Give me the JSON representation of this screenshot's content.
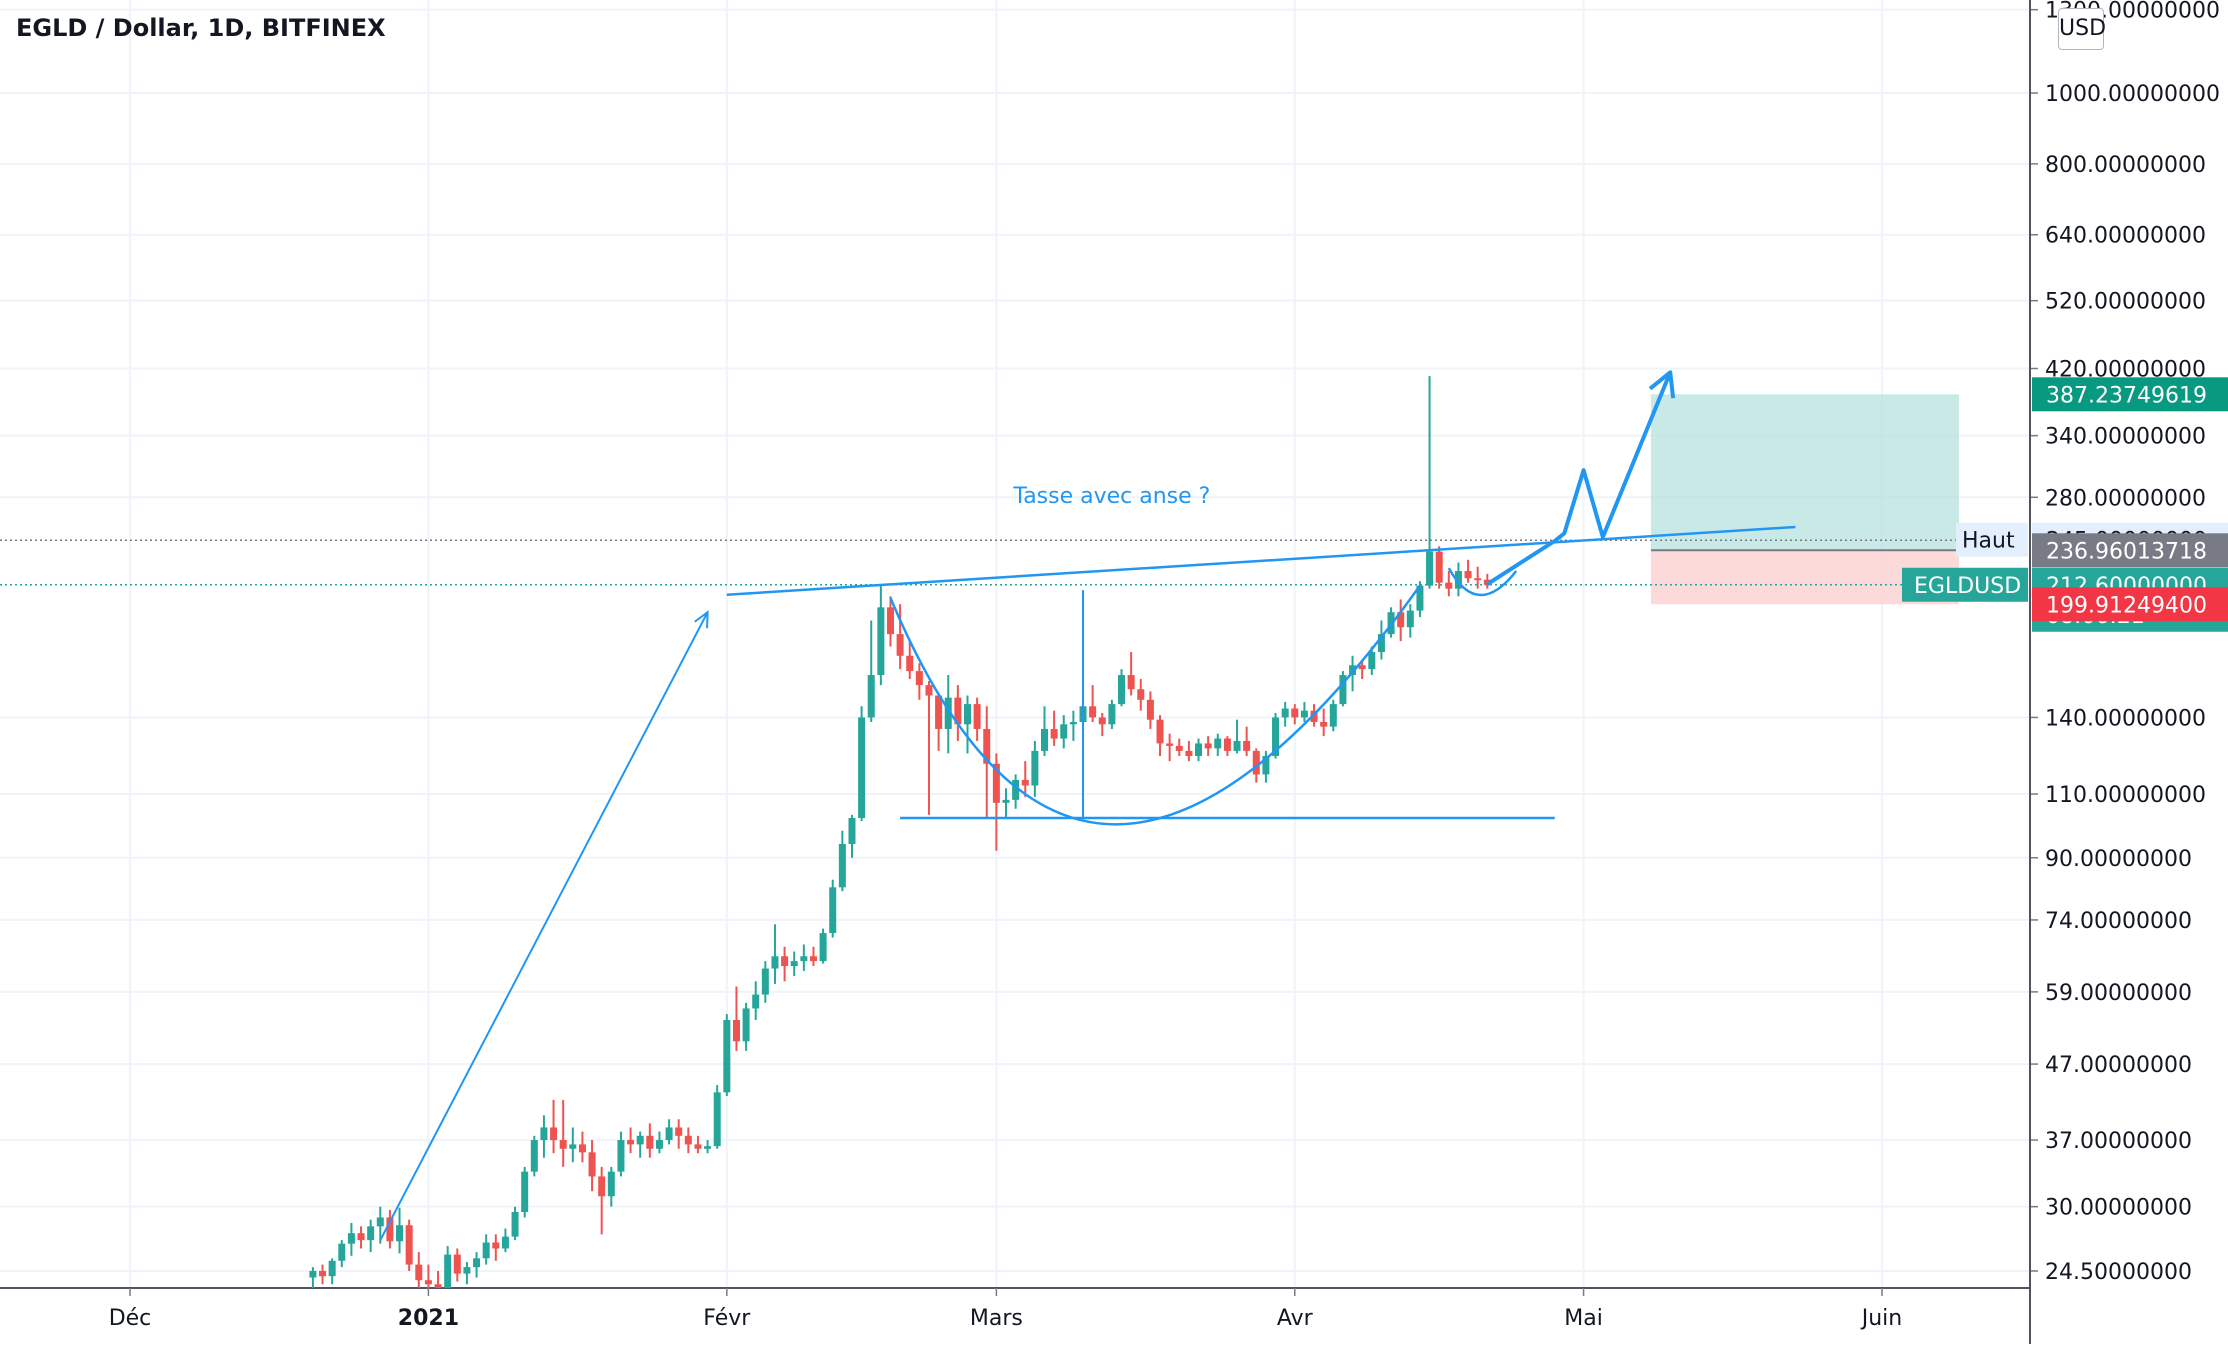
{
  "header": {
    "title": "EGLD / Dollar, 1D, BITFINEX",
    "currency": "USD"
  },
  "colors": {
    "up": "#26a69a",
    "down": "#ef5350",
    "drawing": "#2196f3",
    "target_zone": "#b2dfdb",
    "stop_zone": "#fdd4d4"
  },
  "chart_data": {
    "type": "candlestick",
    "symbol": "EGLDUSD",
    "timeframe": "1D",
    "x_axis": {
      "labels": [
        "Déc",
        "2021",
        "Févr",
        "Mars",
        "Avr",
        "Mai",
        "Juin"
      ],
      "range": [
        "2020-11-15",
        "2021-06-15"
      ]
    },
    "y_axis": {
      "scale": "log",
      "range": [
        22,
        1300
      ],
      "tick_labels": [
        "1300.00000000",
        "1000.00000000",
        "800.00000000",
        "640.00000000",
        "520.00000000",
        "420.00000000",
        "340.00000000",
        "280.00000000",
        "140.00000000",
        "110.00000000",
        "90.00000000",
        "74.00000000",
        "59.00000000",
        "47.00000000",
        "37.00000000",
        "30.00000000",
        "24.50000000"
      ]
    },
    "price_labels": {
      "target": "387.23749619",
      "alert_label": "Haut",
      "alert": "245.00000000",
      "entry": "236.96013718",
      "last_symbol": "EGLDUSD",
      "last": "212.60000000",
      "countdown": "08:06:21",
      "stop": "199.91249400"
    },
    "annotations": {
      "pattern_label": "Tasse avec anse ?"
    },
    "series": [
      {
        "candles": [
          [
            "2020-12-20",
            24.0,
            24.8,
            23.2,
            24.5
          ],
          [
            "2020-12-21",
            24.5,
            25.0,
            23.5,
            24.1
          ],
          [
            "2020-12-22",
            24.1,
            25.5,
            23.5,
            25.3
          ],
          [
            "2020-12-23",
            25.3,
            27.0,
            24.8,
            26.7
          ],
          [
            "2020-12-24",
            26.7,
            28.5,
            25.7,
            27.6
          ],
          [
            "2020-12-25",
            27.6,
            28.2,
            26.3,
            27.0
          ],
          [
            "2020-12-26",
            27.0,
            28.8,
            26.0,
            28.2
          ],
          [
            "2020-12-27",
            28.2,
            30.0,
            26.7,
            29.0
          ],
          [
            "2020-12-28",
            29.0,
            29.7,
            26.3,
            26.9
          ],
          [
            "2020-12-29",
            26.9,
            29.9,
            25.9,
            28.3
          ],
          [
            "2020-12-30",
            28.3,
            28.8,
            24.5,
            25.0
          ],
          [
            "2020-12-31",
            25.0,
            26.0,
            23.0,
            23.8
          ],
          [
            "2021-01-01",
            23.8,
            25.0,
            22.8,
            23.5
          ],
          [
            "2021-01-02",
            23.5,
            24.5,
            22.5,
            23.2
          ],
          [
            "2021-01-03",
            23.2,
            26.5,
            23.0,
            25.8
          ],
          [
            "2021-01-04",
            25.8,
            26.3,
            23.7,
            24.3
          ],
          [
            "2021-01-05",
            24.3,
            25.2,
            23.5,
            24.8
          ],
          [
            "2021-01-06",
            24.8,
            26.0,
            24.0,
            25.5
          ],
          [
            "2021-01-07",
            25.5,
            27.5,
            25.0,
            26.8
          ],
          [
            "2021-01-08",
            26.8,
            27.5,
            25.3,
            26.3
          ],
          [
            "2021-01-09",
            26.3,
            28.0,
            26.0,
            27.3
          ],
          [
            "2021-01-10",
            27.3,
            30.0,
            27.0,
            29.5
          ],
          [
            "2021-01-11",
            29.5,
            34.0,
            29.0,
            33.5
          ],
          [
            "2021-01-12",
            33.5,
            37.5,
            33.0,
            37.0
          ],
          [
            "2021-01-13",
            37.0,
            40.0,
            35.0,
            38.5
          ],
          [
            "2021-01-14",
            38.5,
            42.0,
            35.5,
            37.0
          ],
          [
            "2021-01-15",
            37.0,
            42.0,
            34.0,
            36.0
          ],
          [
            "2021-01-16",
            36.0,
            38.5,
            34.5,
            36.5
          ],
          [
            "2021-01-17",
            36.5,
            38.0,
            34.5,
            35.6
          ],
          [
            "2021-01-18",
            35.6,
            37.0,
            31.5,
            33.0
          ],
          [
            "2021-01-19",
            33.0,
            34.0,
            27.5,
            31.0
          ],
          [
            "2021-01-20",
            31.0,
            34.0,
            30.0,
            33.5
          ],
          [
            "2021-01-21",
            33.5,
            38.0,
            33.0,
            37.0
          ],
          [
            "2021-01-22",
            37.0,
            38.5,
            35.5,
            36.5
          ],
          [
            "2021-01-23",
            36.5,
            38.0,
            35.0,
            37.5
          ],
          [
            "2021-01-24",
            37.5,
            39.0,
            35.0,
            36.0
          ],
          [
            "2021-01-25",
            36.0,
            38.0,
            35.5,
            37.0
          ],
          [
            "2021-01-26",
            37.0,
            39.5,
            36.5,
            38.5
          ],
          [
            "2021-01-27",
            38.5,
            39.5,
            36.0,
            37.5
          ],
          [
            "2021-01-28",
            37.5,
            38.5,
            35.5,
            36.5
          ],
          [
            "2021-01-29",
            36.5,
            37.5,
            35.5,
            36.0
          ],
          [
            "2021-01-30",
            36.0,
            37.0,
            35.5,
            36.3
          ],
          [
            "2021-01-31",
            36.3,
            44.0,
            36.0,
            43.0
          ],
          [
            "2021-02-01",
            43.0,
            55.0,
            42.5,
            54.0
          ],
          [
            "2021-02-02",
            54.0,
            60.0,
            49.0,
            50.5
          ],
          [
            "2021-02-03",
            50.5,
            57.0,
            49.0,
            56.0
          ],
          [
            "2021-02-04",
            56.0,
            61.0,
            54.0,
            58.5
          ],
          [
            "2021-02-05",
            58.5,
            65.0,
            57.0,
            63.5
          ],
          [
            "2021-02-06",
            63.5,
            73.0,
            60.5,
            66.0
          ],
          [
            "2021-02-07",
            66.0,
            68.0,
            61.0,
            64.0
          ],
          [
            "2021-02-08",
            64.0,
            67.0,
            62.0,
            65.0
          ],
          [
            "2021-02-09",
            65.0,
            68.5,
            63.0,
            66.0
          ],
          [
            "2021-02-10",
            66.0,
            68.0,
            64.0,
            65.0
          ],
          [
            "2021-02-11",
            65.0,
            72.0,
            64.5,
            71.0
          ],
          [
            "2021-02-12",
            71.0,
            84.0,
            70.0,
            82.0
          ],
          [
            "2021-02-13",
            82.0,
            98.0,
            81.0,
            94.0
          ],
          [
            "2021-02-14",
            94.0,
            103.0,
            90.0,
            102.0
          ],
          [
            "2021-02-15",
            102.0,
            145.0,
            101.0,
            140.0
          ],
          [
            "2021-02-16",
            140.0,
            190.0,
            138.0,
            160.0
          ],
          [
            "2021-02-17",
            160.0,
            212.0,
            155.0,
            198.0
          ],
          [
            "2021-02-18",
            198.0,
            205.0,
            175.0,
            182.0
          ],
          [
            "2021-02-19",
            182.0,
            200.0,
            163.0,
            170.0
          ],
          [
            "2021-02-20",
            170.0,
            178.0,
            158.0,
            162.0
          ],
          [
            "2021-02-21",
            162.0,
            166.0,
            148.0,
            155.0
          ],
          [
            "2021-02-22",
            155.0,
            157.0,
            103.0,
            150.0
          ],
          [
            "2021-02-23",
            150.0,
            151.0,
            126.0,
            135.0
          ],
          [
            "2021-02-24",
            135.0,
            160.0,
            125.0,
            149.0
          ],
          [
            "2021-02-25",
            149.0,
            155.0,
            130.0,
            137.0
          ],
          [
            "2021-02-26",
            137.0,
            150.0,
            125.0,
            146.0
          ],
          [
            "2021-02-27",
            146.0,
            149.0,
            130.0,
            135.0
          ],
          [
            "2021-02-28",
            135.0,
            145.0,
            102.0,
            121.0
          ],
          [
            "2021-03-01",
            121.0,
            125.0,
            92.0,
            107.0
          ],
          [
            "2021-03-02",
            107.0,
            112.0,
            102.0,
            108.0
          ],
          [
            "2021-03-03",
            108.0,
            117.0,
            105.0,
            115.0
          ],
          [
            "2021-03-04",
            115.0,
            122.0,
            109.0,
            113.0
          ],
          [
            "2021-03-05",
            113.0,
            130.0,
            109.0,
            126.0
          ],
          [
            "2021-03-06",
            126.0,
            145.0,
            124.0,
            135.0
          ],
          [
            "2021-03-07",
            135.0,
            143.0,
            128.0,
            131.0
          ],
          [
            "2021-03-08",
            131.0,
            141.0,
            127.0,
            137.0
          ],
          [
            "2021-03-09",
            137.0,
            143.0,
            130.0,
            138.0
          ],
          [
            "2021-03-10",
            138.0,
            152.0,
            136.0,
            145.0
          ],
          [
            "2021-03-11",
            145.0,
            155.0,
            138.0,
            140.0
          ],
          [
            "2021-03-12",
            140.0,
            142.0,
            132.0,
            137.0
          ],
          [
            "2021-03-13",
            137.0,
            148.0,
            135.0,
            146.0
          ],
          [
            "2021-03-14",
            146.0,
            163.0,
            145.0,
            160.0
          ],
          [
            "2021-03-15",
            160.0,
            172.0,
            150.0,
            153.0
          ],
          [
            "2021-03-16",
            153.0,
            158.0,
            143.0,
            148.0
          ],
          [
            "2021-03-17",
            148.0,
            152.0,
            135.0,
            139.0
          ],
          [
            "2021-03-18",
            139.0,
            141.0,
            124.0,
            129.0
          ],
          [
            "2021-03-19",
            129.0,
            133.0,
            122.0,
            128.0
          ],
          [
            "2021-03-20",
            128.0,
            131.0,
            124.0,
            126.0
          ],
          [
            "2021-03-21",
            126.0,
            130.0,
            122.0,
            124.0
          ],
          [
            "2021-03-22",
            124.0,
            131.0,
            122.0,
            129.0
          ],
          [
            "2021-03-23",
            129.0,
            132.0,
            124.0,
            127.0
          ],
          [
            "2021-03-24",
            127.0,
            133.0,
            124.0,
            131.0
          ],
          [
            "2021-03-25",
            131.0,
            132.0,
            124.0,
            126.0
          ],
          [
            "2021-03-26",
            126.0,
            139.0,
            125.0,
            130.0
          ],
          [
            "2021-03-27",
            130.0,
            136.0,
            124.0,
            126.0
          ],
          [
            "2021-03-28",
            126.0,
            127.0,
            114.0,
            117.0
          ],
          [
            "2021-03-29",
            117.0,
            126.0,
            114.0,
            124.0
          ],
          [
            "2021-03-30",
            124.0,
            142.0,
            123.0,
            140.0
          ],
          [
            "2021-03-31",
            140.0,
            147.0,
            136.0,
            144.0
          ],
          [
            "2021-04-01",
            144.0,
            146.0,
            137.0,
            140.0
          ],
          [
            "2021-04-02",
            140.0,
            147.0,
            138.0,
            143.0
          ],
          [
            "2021-04-03",
            143.0,
            146.0,
            136.0,
            138.0
          ],
          [
            "2021-04-04",
            138.0,
            144.0,
            132.0,
            136.0
          ],
          [
            "2021-04-05",
            136.0,
            148.0,
            134.0,
            146.0
          ],
          [
            "2021-04-06",
            146.0,
            162.0,
            145.0,
            160.0
          ],
          [
            "2021-04-07",
            160.0,
            170.0,
            152.0,
            165.0
          ],
          [
            "2021-04-08",
            165.0,
            168.0,
            158.0,
            163.0
          ],
          [
            "2021-04-09",
            163.0,
            175.0,
            160.0,
            172.0
          ],
          [
            "2021-04-10",
            172.0,
            190.0,
            168.0,
            182.0
          ],
          [
            "2021-04-11",
            182.0,
            198.0,
            180.0,
            195.0
          ],
          [
            "2021-04-12",
            195.0,
            203.0,
            178.0,
            186.0
          ],
          [
            "2021-04-13",
            186.0,
            200.0,
            180.0,
            196.0
          ],
          [
            "2021-04-14",
            196.0,
            215.0,
            192.0,
            212.0
          ],
          [
            "2021-04-15",
            212.0,
            410.0,
            210.0,
            236.0
          ],
          [
            "2021-04-16",
            236.0,
            240.0,
            210.0,
            214.0
          ],
          [
            "2021-04-17",
            214.0,
            222.0,
            205.0,
            210.0
          ],
          [
            "2021-04-18",
            210.0,
            228.0,
            205.0,
            222.0
          ],
          [
            "2021-04-19",
            222.0,
            230.0,
            214.0,
            217.0
          ],
          [
            "2021-04-20",
            217.0,
            225.0,
            210.0,
            216.0
          ],
          [
            "2021-04-21",
            216.0,
            220.0,
            210.0,
            212.6
          ]
        ]
      }
    ],
    "drawings": {
      "resistance_line": {
        "from": [
          "2021-02-01",
          206
        ],
        "to": [
          "2021-05-23",
          255
        ]
      },
      "cup_base_line": {
        "from": [
          "2021-02-19",
          102
        ],
        "to": [
          "2021-04-28",
          102
        ]
      },
      "cup_center_line": {
        "from": [
          "2021-03-10",
          209
        ],
        "to": [
          "2021-03-10",
          102
        ]
      },
      "impulse_arrow": {
        "from": [
          "2020-12-27",
          27
        ],
        "to": [
          "2021-01-30",
          195
        ]
      },
      "projection_path": [
        [
          "2021-04-21",
          213
        ],
        [
          "2021-04-28",
          244
        ],
        [
          "2021-04-29",
          250
        ],
        [
          "2021-05-01",
          305
        ],
        [
          "2021-05-03",
          247
        ],
        [
          "2021-05-10",
          415
        ]
      ],
      "position": {
        "from": "2021-05-08",
        "to": "2021-06-09",
        "entry": 236.96013718,
        "target": 387.23749619,
        "stop": 199.912494
      }
    }
  }
}
